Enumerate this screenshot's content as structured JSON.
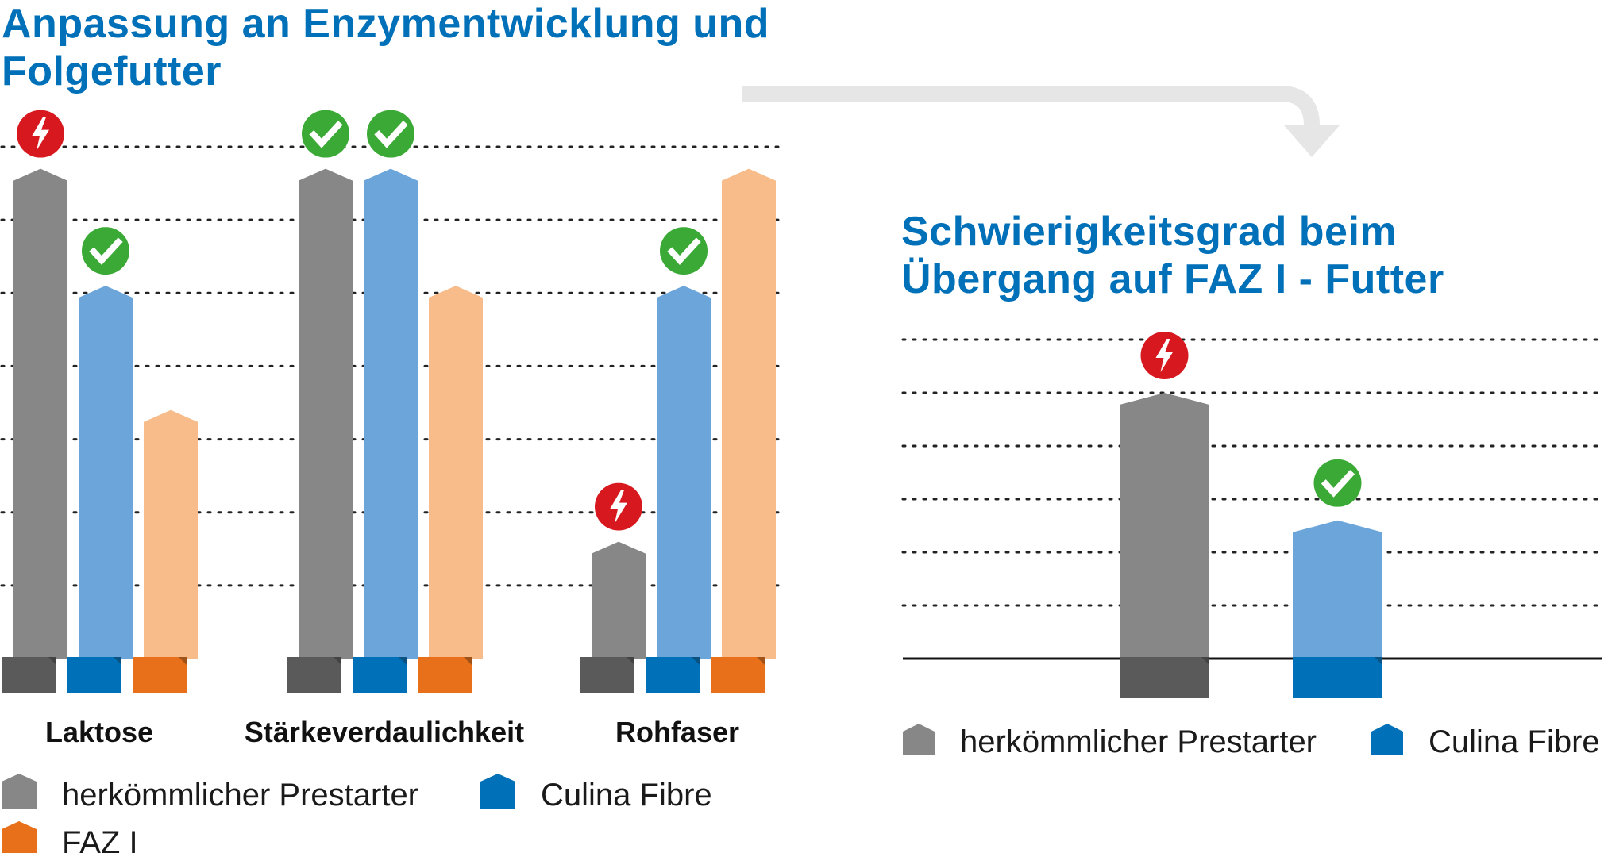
{
  "colors": {
    "prestarter": "#878787",
    "prestarter_base": "#5a5a5a",
    "culina": "#6ca5da",
    "culina_base": "#0070b8",
    "faz": "#f7bc8a",
    "faz_base": "#e8701a",
    "title": "#0070b8",
    "ok_badge": "#3aa935",
    "warn_badge": "#d7191f",
    "arrow": "#e6e6e6",
    "gridline": "#222222"
  },
  "arrow_icon": "curved-arrow-right-down",
  "chart_data": [
    {
      "type": "bar",
      "title": "Anpassung an Enzymentwicklung und Folgefutter",
      "xlabel": "",
      "ylabel": "",
      "ylim": [
        0,
        7
      ],
      "grid": true,
      "legend_position": "bottom",
      "categories": [
        "Laktose",
        "Stärkeverdaulichkeit",
        "Rohfaser"
      ],
      "series": [
        {
          "name": "herkömmlicher Prestarter",
          "values": [
            6.7,
            6.7,
            1.6
          ],
          "badges": [
            "warn",
            "ok",
            "warn"
          ]
        },
        {
          "name": "Culina Fibre",
          "values": [
            5.1,
            6.7,
            5.1
          ],
          "badges": [
            "ok",
            "ok",
            "ok"
          ]
        },
        {
          "name": "FAZ I",
          "values": [
            3.4,
            5.1,
            6.7
          ],
          "badges": [
            "",
            "",
            ""
          ]
        }
      ]
    },
    {
      "type": "bar",
      "title": "Schwierigkeitsgrad beim Übergang auf FAZ I - Futter",
      "xlabel": "",
      "ylabel": "",
      "ylim": [
        0,
        6
      ],
      "grid": true,
      "legend_position": "bottom",
      "categories": [
        ""
      ],
      "series": [
        {
          "name": "herkömmlicher Prestarter",
          "values": [
            5.0
          ],
          "badges": [
            "warn"
          ]
        },
        {
          "name": "Culina Fibre",
          "values": [
            2.6
          ],
          "badges": [
            "ok"
          ]
        }
      ]
    }
  ]
}
